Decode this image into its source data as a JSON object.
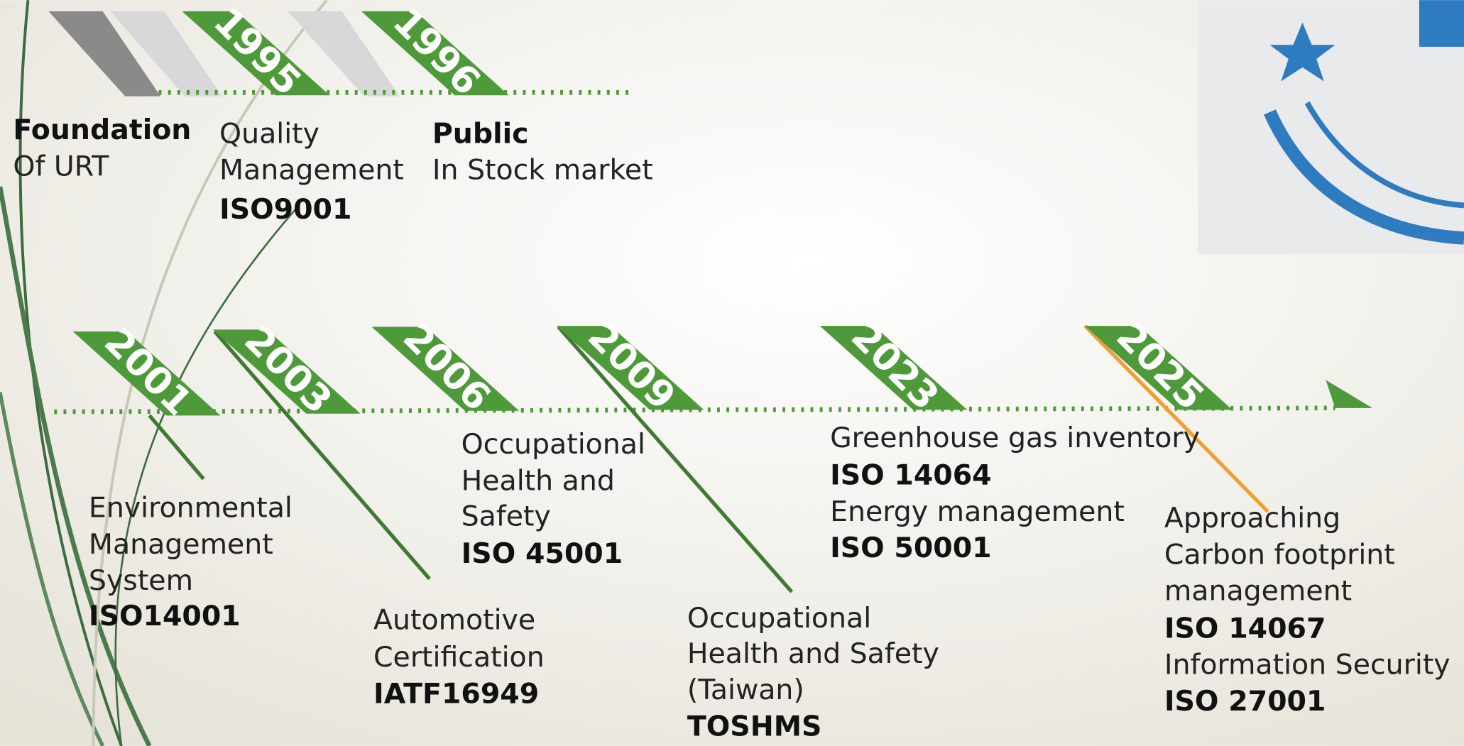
{
  "flags": [
    "1995",
    "1996",
    "2001",
    "2003",
    "2006",
    "2009",
    "2023",
    "2025"
  ],
  "milestones": [
    [
      "Foundation",
      "Of URT"
    ],
    [
      "Quality",
      "Management",
      "ISO9001"
    ],
    [
      "Public",
      "In Stock market"
    ],
    [
      "Environmental",
      "Management",
      "System",
      "ISO14001"
    ],
    [
      "Automotive",
      "Certification",
      "IATF16949"
    ],
    [
      "Occupational",
      "Health and",
      "Safety",
      "ISO 45001"
    ],
    [
      "Occupational",
      "Health and Safety",
      "(Taiwan)",
      "TOSHMS"
    ],
    [
      "Greenhouse gas inventory",
      "ISO 14064",
      "Energy management",
      "ISO 50001"
    ],
    [
      "Approaching",
      "Carbon footprint",
      "management",
      "ISO 14067",
      "Information Security",
      "ISO 27001"
    ]
  ]
}
